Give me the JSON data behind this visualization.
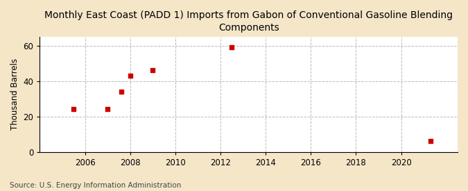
{
  "title": "Monthly East Coast (PADD 1) Imports from Gabon of Conventional Gasoline Blending\nComponents",
  "ylabel": "Thousand Barrels",
  "source": "Source: U.S. Energy Information Administration",
  "x_data": [
    2005.5,
    2007.0,
    2007.6,
    2008.0,
    2009.0,
    2012.5,
    2021.3
  ],
  "y_data": [
    24,
    24,
    34,
    43,
    46,
    59,
    6
  ],
  "marker_color": "#cc0000",
  "marker_size": 20,
  "xlim": [
    2004.0,
    2022.5
  ],
  "ylim": [
    0,
    65
  ],
  "xticks": [
    2006,
    2008,
    2010,
    2012,
    2014,
    2016,
    2018,
    2020
  ],
  "yticks": [
    0,
    20,
    40,
    60
  ],
  "fig_background_color": "#f5e6c8",
  "plot_background_color": "#ffffff",
  "grid_color": "#aaaaaa",
  "title_fontsize": 10,
  "axis_fontsize": 8.5,
  "source_fontsize": 7.5
}
